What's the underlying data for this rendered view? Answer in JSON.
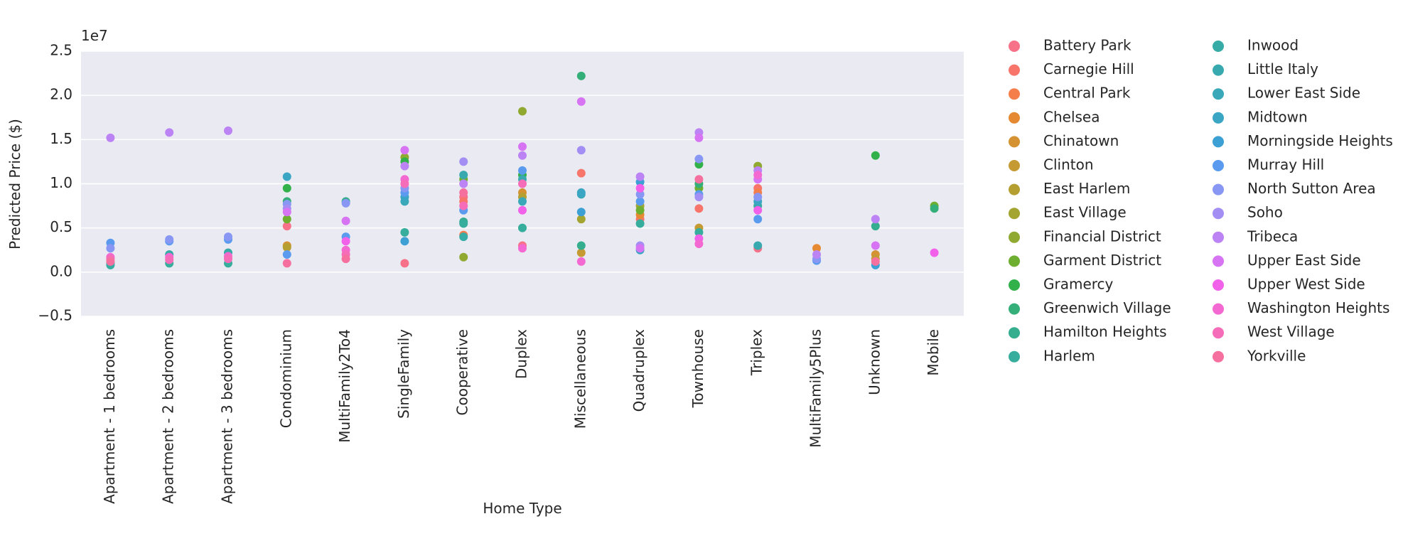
{
  "chart_data": {
    "type": "strip",
    "y_label": "Predicted Price ($)",
    "x_label": "Home Type",
    "y_offset_label": "1e7",
    "categories": [
      "Apartment - 1 bedrooms",
      "Apartment - 2 bedrooms",
      "Apartment - 3 bedrooms",
      "Condominium",
      "MultiFamily2To4",
      "SingleFamily",
      "Cooperative",
      "Duplex",
      "Miscellaneous",
      "Quadruplex",
      "Townhouse",
      "Triplex",
      "MultiFamily5Plus",
      "Unknown",
      "Mobile"
    ],
    "ylim": [
      -0.5,
      2.5
    ],
    "yticks": [
      {
        "value": -0.5,
        "label": "−0.5"
      },
      {
        "value": 0,
        "label": "0.0"
      },
      0.5,
      {
        "value": 1,
        "label": "1.0"
      },
      1.5,
      {
        "value": 2,
        "label": "2.0"
      },
      2.5
    ],
    "grid": true,
    "legend_position": "right",
    "series": [
      {
        "name": "Battery Park",
        "color": "#f77189",
        "values": [
          null,
          null,
          null,
          0.52,
          null,
          0.1,
          0.85,
          0.3,
          null,
          null,
          null,
          0.27,
          null,
          null,
          null
        ]
      },
      {
        "name": "Carnegie Hill",
        "color": "#f7756a",
        "values": [
          null,
          null,
          null,
          null,
          null,
          null,
          0.8,
          null,
          1.12,
          0.6,
          0.72,
          0.95,
          null,
          null,
          null
        ]
      },
      {
        "name": "Central Park",
        "color": "#f57f4b",
        "values": [
          null,
          null,
          null,
          null,
          null,
          null,
          0.42,
          null,
          null,
          null,
          null,
          0.9,
          null,
          null,
          null
        ]
      },
      {
        "name": "Chelsea",
        "color": "#e58a32",
        "values": [
          null,
          null,
          null,
          null,
          null,
          null,
          null,
          null,
          null,
          0.65,
          null,
          null,
          0.27,
          null,
          null
        ]
      },
      {
        "name": "Chinatown",
        "color": "#d49232",
        "values": [
          null,
          null,
          null,
          0.3,
          null,
          null,
          null,
          0.9,
          null,
          null,
          null,
          null,
          null,
          0.2,
          null
        ]
      },
      {
        "name": "Clinton",
        "color": "#c59a32",
        "values": [
          null,
          null,
          null,
          null,
          null,
          null,
          null,
          null,
          0.22,
          null,
          0.5,
          null,
          null,
          0.15,
          null
        ]
      },
      {
        "name": "East Harlem",
        "color": "#b59f31",
        "values": [
          null,
          null,
          null,
          0.28,
          null,
          null,
          null,
          0.85,
          null,
          null,
          null,
          null,
          null,
          null,
          null
        ]
      },
      {
        "name": "East Village",
        "color": "#a4a431",
        "values": [
          null,
          null,
          null,
          null,
          null,
          null,
          null,
          null,
          0.6,
          0.75,
          null,
          null,
          null,
          null,
          null
        ]
      },
      {
        "name": "Financial District",
        "color": "#90a931",
        "values": [
          null,
          null,
          null,
          null,
          null,
          1.3,
          0.17,
          1.82,
          null,
          null,
          null,
          1.2,
          null,
          null,
          null
        ]
      },
      {
        "name": "Garment District",
        "color": "#6eae31",
        "values": [
          null,
          null,
          null,
          0.6,
          null,
          null,
          1.05,
          null,
          null,
          0.7,
          0.95,
          null,
          null,
          null,
          0.75
        ]
      },
      {
        "name": "Gramercy",
        "color": "#32b14a",
        "values": [
          null,
          null,
          null,
          0.95,
          null,
          1.25,
          null,
          1.1,
          null,
          null,
          1.22,
          null,
          null,
          1.32,
          null
        ]
      },
      {
        "name": "Greenwich Village",
        "color": "#34af79",
        "values": [
          null,
          null,
          null,
          0.8,
          null,
          null,
          null,
          null,
          2.22,
          null,
          1.0,
          null,
          null,
          null,
          0.72
        ]
      },
      {
        "name": "Hamilton Heights",
        "color": "#35ad8f",
        "values": [
          null,
          null,
          null,
          null,
          0.8,
          null,
          0.57,
          null,
          0.3,
          null,
          null,
          null,
          null,
          0.52,
          null
        ]
      },
      {
        "name": "Harlem",
        "color": "#36ad9d",
        "values": [
          0.08,
          0.1,
          0.1,
          null,
          null,
          0.45,
          0.55,
          0.5,
          null,
          0.55,
          0.45,
          0.75,
          null,
          null,
          null
        ]
      },
      {
        "name": "Inwood",
        "color": "#37aba6",
        "values": [
          0.1,
          0.2,
          0.22,
          null,
          null,
          null,
          0.4,
          null,
          null,
          null,
          null,
          null,
          null,
          null,
          null
        ]
      },
      {
        "name": "Little Italy",
        "color": "#38aaaf",
        "values": [
          null,
          null,
          null,
          null,
          null,
          null,
          1.1,
          1.05,
          null,
          null,
          null,
          0.3,
          null,
          null,
          null
        ]
      },
      {
        "name": "Lower East Side",
        "color": "#39a8b9",
        "values": [
          null,
          null,
          null,
          null,
          null,
          0.8,
          null,
          0.8,
          0.88,
          null,
          null,
          null,
          null,
          null,
          null
        ]
      },
      {
        "name": "Midtown",
        "color": "#3ba5c4",
        "values": [
          null,
          null,
          null,
          1.08,
          null,
          0.85,
          null,
          null,
          0.9,
          0.25,
          null,
          0.8,
          null,
          null,
          null
        ]
      },
      {
        "name": "Morningside Heights",
        "color": "#3da0d4",
        "values": [
          null,
          null,
          null,
          null,
          null,
          0.35,
          null,
          null,
          0.68,
          1.02,
          null,
          null,
          null,
          0.08,
          null
        ]
      },
      {
        "name": "Murray Hill",
        "color": "#5a9bef",
        "values": [
          0.33,
          0.35,
          0.37,
          0.2,
          0.4,
          0.9,
          0.7,
          1.15,
          null,
          0.8,
          0.88,
          0.6,
          0.13,
          null,
          null
        ]
      },
      {
        "name": "North Sutton Area",
        "color": "#8896f4",
        "values": [
          0.27,
          0.37,
          0.4,
          0.77,
          0.78,
          0.95,
          null,
          null,
          null,
          0.88,
          1.28,
          0.85,
          0.15,
          null,
          null
        ]
      },
      {
        "name": "Soho",
        "color": "#a38ef4",
        "values": [
          null,
          null,
          null,
          0.72,
          null,
          null,
          1.25,
          null,
          1.38,
          0.3,
          0.85,
          null,
          null,
          null,
          null
        ]
      },
      {
        "name": "Tribeca",
        "color": "#bb83f4",
        "values": [
          1.52,
          1.58,
          1.6,
          null,
          null,
          1.2,
          1.0,
          1.32,
          null,
          1.08,
          1.58,
          1.15,
          0.2,
          0.6,
          null
        ]
      },
      {
        "name": "Upper East Side",
        "color": "#d674f3",
        "values": [
          null,
          null,
          null,
          0.68,
          0.58,
          1.38,
          null,
          1.42,
          1.93,
          0.27,
          1.52,
          1.05,
          null,
          0.3,
          null
        ]
      },
      {
        "name": "Upper West Side",
        "color": "#f161e9",
        "values": [
          null,
          null,
          null,
          null,
          0.35,
          null,
          null,
          0.7,
          null,
          0.95,
          0.38,
          0.7,
          null,
          null,
          0.22
        ]
      },
      {
        "name": "Washington Heights",
        "color": "#f468d2",
        "values": [
          0.17,
          0.17,
          0.18,
          null,
          0.25,
          1.05,
          null,
          0.27,
          0.12,
          null,
          0.32,
          1.1,
          null,
          null,
          null
        ]
      },
      {
        "name": "West Village",
        "color": "#f56cb8",
        "values": [
          0.15,
          0.14,
          0.15,
          null,
          0.2,
          1.0,
          0.75,
          1.0,
          null,
          null,
          null,
          null,
          null,
          null,
          null
        ]
      },
      {
        "name": "Yorkville",
        "color": "#f6709f",
        "values": [
          0.12,
          null,
          null,
          0.1,
          0.15,
          null,
          0.9,
          null,
          null,
          null,
          1.05,
          null,
          null,
          0.12,
          null
        ]
      }
    ]
  }
}
